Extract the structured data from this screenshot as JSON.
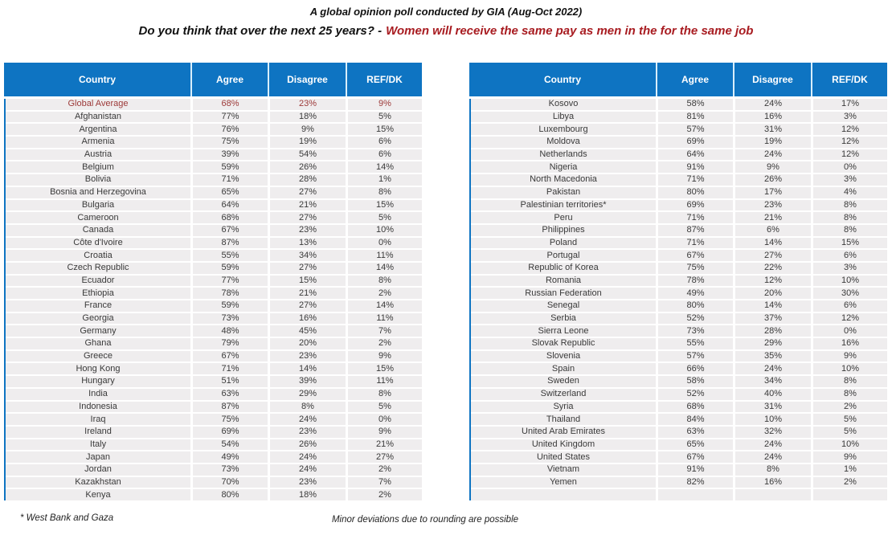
{
  "header": {
    "title": "A global opinion poll conducted by GIA (Aug-Oct 2022)",
    "question_prefix": "Do you think that over the next 25 years? -",
    "question_topic": "Women will receive the same pay as men in the for the same job"
  },
  "footnotes": {
    "left": "* West Bank and Gaza",
    "center": "Minor deviations due to rounding are possible"
  },
  "colors": {
    "blue": "#0e74c2",
    "rowBg": "#efedee",
    "avgRed": "#9c3938",
    "titleRed": "#a81c21"
  },
  "chart_data": {
    "type": "table",
    "title": "A global opinion poll conducted by GIA (Aug-Oct 2022)",
    "subtitle": "Do you think that over the next 25 years? - Women will receive the same pay as men in the for the same job",
    "columns": [
      "Country",
      "Agree",
      "Disagree",
      "REF/DK"
    ],
    "tables": [
      {
        "name": "countries-global-to-kenya",
        "highlight_rows": [
          0
        ],
        "rows": [
          [
            "Global Average",
            "68%",
            "23%",
            "9%"
          ],
          [
            "Afghanistan",
            "77%",
            "18%",
            "5%"
          ],
          [
            "Argentina",
            "76%",
            "9%",
            "15%"
          ],
          [
            "Armenia",
            "75%",
            "19%",
            "6%"
          ],
          [
            "Austria",
            "39%",
            "54%",
            "6%"
          ],
          [
            "Belgium",
            "59%",
            "26%",
            "14%"
          ],
          [
            "Bolivia",
            "71%",
            "28%",
            "1%"
          ],
          [
            "Bosnia and Herzegovina",
            "65%",
            "27%",
            "8%"
          ],
          [
            "Bulgaria",
            "64%",
            "21%",
            "15%"
          ],
          [
            "Cameroon",
            "68%",
            "27%",
            "5%"
          ],
          [
            "Canada",
            "67%",
            "23%",
            "10%"
          ],
          [
            "Côte d'Ivoire",
            "87%",
            "13%",
            "0%"
          ],
          [
            "Croatia",
            "55%",
            "34%",
            "11%"
          ],
          [
            "Czech Republic",
            "59%",
            "27%",
            "14%"
          ],
          [
            "Ecuador",
            "77%",
            "15%",
            "8%"
          ],
          [
            "Ethiopia",
            "78%",
            "21%",
            "2%"
          ],
          [
            "France",
            "59%",
            "27%",
            "14%"
          ],
          [
            "Georgia",
            "73%",
            "16%",
            "11%"
          ],
          [
            "Germany",
            "48%",
            "45%",
            "7%"
          ],
          [
            "Ghana",
            "79%",
            "20%",
            "2%"
          ],
          [
            "Greece",
            "67%",
            "23%",
            "9%"
          ],
          [
            "Hong Kong",
            "71%",
            "14%",
            "15%"
          ],
          [
            "Hungary",
            "51%",
            "39%",
            "11%"
          ],
          [
            "India",
            "63%",
            "29%",
            "8%"
          ],
          [
            "Indonesia",
            "87%",
            "8%",
            "5%"
          ],
          [
            "Iraq",
            "75%",
            "24%",
            "0%"
          ],
          [
            "Ireland",
            "69%",
            "23%",
            "9%"
          ],
          [
            "Italy",
            "54%",
            "26%",
            "21%"
          ],
          [
            "Japan",
            "49%",
            "24%",
            "27%"
          ],
          [
            "Jordan",
            "73%",
            "24%",
            "2%"
          ],
          [
            "Kazakhstan",
            "70%",
            "23%",
            "7%"
          ],
          [
            "Kenya",
            "80%",
            "18%",
            "2%"
          ]
        ]
      },
      {
        "name": "countries-kosovo-to-yemen",
        "highlight_rows": [],
        "rows": [
          [
            "Kosovo",
            "58%",
            "24%",
            "17%"
          ],
          [
            "Libya",
            "81%",
            "16%",
            "3%"
          ],
          [
            "Luxembourg",
            "57%",
            "31%",
            "12%"
          ],
          [
            "Moldova",
            "69%",
            "19%",
            "12%"
          ],
          [
            "Netherlands",
            "64%",
            "24%",
            "12%"
          ],
          [
            "Nigeria",
            "91%",
            "9%",
            "0%"
          ],
          [
            "North Macedonia",
            "71%",
            "26%",
            "3%"
          ],
          [
            "Pakistan",
            "80%",
            "17%",
            "4%"
          ],
          [
            "Palestinian territories*",
            "69%",
            "23%",
            "8%"
          ],
          [
            "Peru",
            "71%",
            "21%",
            "8%"
          ],
          [
            "Philippines",
            "87%",
            "6%",
            "8%"
          ],
          [
            "Poland",
            "71%",
            "14%",
            "15%"
          ],
          [
            "Portugal",
            "67%",
            "27%",
            "6%"
          ],
          [
            "Republic of Korea",
            "75%",
            "22%",
            "3%"
          ],
          [
            "Romania",
            "78%",
            "12%",
            "10%"
          ],
          [
            "Russian Federation",
            "49%",
            "20%",
            "30%"
          ],
          [
            "Senegal",
            "80%",
            "14%",
            "6%"
          ],
          [
            "Serbia",
            "52%",
            "37%",
            "12%"
          ],
          [
            "Sierra Leone",
            "73%",
            "28%",
            "0%"
          ],
          [
            "Slovak Republic",
            "55%",
            "29%",
            "16%"
          ],
          [
            "Slovenia",
            "57%",
            "35%",
            "9%"
          ],
          [
            "Spain",
            "66%",
            "24%",
            "10%"
          ],
          [
            "Sweden",
            "58%",
            "34%",
            "8%"
          ],
          [
            "Switzerland",
            "52%",
            "40%",
            "8%"
          ],
          [
            "Syria",
            "68%",
            "31%",
            "2%"
          ],
          [
            "Thailand",
            "84%",
            "10%",
            "5%"
          ],
          [
            "United Arab Emirates",
            "63%",
            "32%",
            "5%"
          ],
          [
            "United Kingdom",
            "65%",
            "24%",
            "10%"
          ],
          [
            "United States",
            "67%",
            "24%",
            "9%"
          ],
          [
            "Vietnam",
            "91%",
            "8%",
            "1%"
          ],
          [
            "Yemen",
            "82%",
            "16%",
            "2%"
          ],
          [
            "",
            "",
            "",
            ""
          ]
        ]
      }
    ]
  }
}
